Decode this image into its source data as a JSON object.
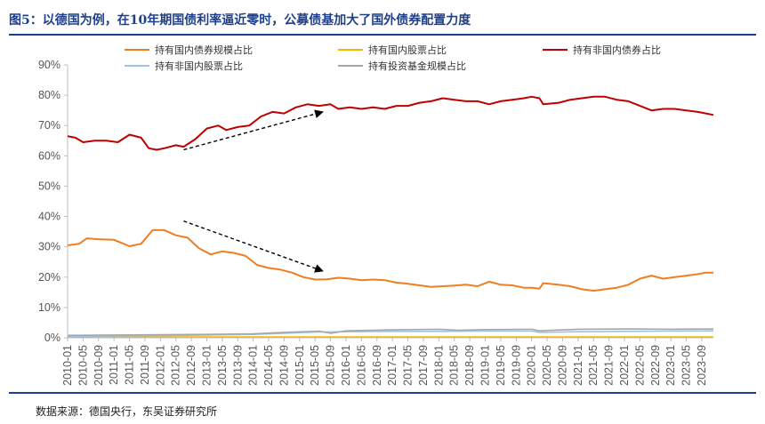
{
  "header": {
    "title": "图5：以德国为例，在10年期国债利率逼近零时，公募债基加大了国外债券配置力度"
  },
  "footer": {
    "source": "数据来源：德国央行，东吴证券研究所"
  },
  "chart_data": {
    "type": "line",
    "title": "",
    "xlabel": "",
    "ylabel": "",
    "ylim": [
      0,
      90
    ],
    "yticks": [
      "0%",
      "10%",
      "20%",
      "30%",
      "40%",
      "50%",
      "60%",
      "70%",
      "80%",
      "90%"
    ],
    "x_start": "2010-01",
    "x_end": "2023-12",
    "xticks": [
      "2010-01",
      "2010-05",
      "2010-09",
      "2011-01",
      "2011-05",
      "2011-09",
      "2012-01",
      "2012-05",
      "2012-09",
      "2013-01",
      "2013-05",
      "2013-09",
      "2014-01",
      "2014-05",
      "2014-09",
      "2015-01",
      "2015-05",
      "2015-09",
      "2016-01",
      "2016-05",
      "2016-09",
      "2017-01",
      "2017-05",
      "2017-09",
      "2018-01",
      "2018-05",
      "2018-09",
      "2019-01",
      "2019-05",
      "2019-09",
      "2020-01",
      "2020-05",
      "2020-09",
      "2021-01",
      "2021-05",
      "2021-09",
      "2022-01",
      "2022-05",
      "2022-09",
      "2023-01",
      "2023-05",
      "2023-09"
    ],
    "legend_position": "top",
    "grid": false,
    "series": [
      {
        "name": "持有国内债券规模占比",
        "color": "#f07d1f",
        "points": [
          [
            "2010-01",
            30.5
          ],
          [
            "2010-04",
            31
          ],
          [
            "2010-06",
            32.8
          ],
          [
            "2010-09",
            32.5
          ],
          [
            "2011-01",
            32.3
          ],
          [
            "2011-05",
            30.2
          ],
          [
            "2011-08",
            31
          ],
          [
            "2011-11",
            35.5
          ],
          [
            "2012-02",
            35.5
          ],
          [
            "2012-05",
            33.8
          ],
          [
            "2012-08",
            33
          ],
          [
            "2012-11",
            29.5
          ],
          [
            "2013-02",
            27.5
          ],
          [
            "2013-05",
            28.5
          ],
          [
            "2013-08",
            28
          ],
          [
            "2013-11",
            27
          ],
          [
            "2014-02",
            24
          ],
          [
            "2014-05",
            23
          ],
          [
            "2014-08",
            22.5
          ],
          [
            "2014-11",
            21.5
          ],
          [
            "2015-02",
            20
          ],
          [
            "2015-05",
            19.2
          ],
          [
            "2015-08",
            19.3
          ],
          [
            "2015-11",
            19.8
          ],
          [
            "2016-02",
            19.5
          ],
          [
            "2016-05",
            19
          ],
          [
            "2016-08",
            19.2
          ],
          [
            "2016-11",
            19
          ],
          [
            "2017-02",
            18.2
          ],
          [
            "2017-05",
            17.8
          ],
          [
            "2017-08",
            17.3
          ],
          [
            "2017-11",
            16.8
          ],
          [
            "2018-02",
            17
          ],
          [
            "2018-05",
            17.2
          ],
          [
            "2018-08",
            17.5
          ],
          [
            "2018-11",
            17
          ],
          [
            "2019-02",
            18.5
          ],
          [
            "2019-05",
            17.5
          ],
          [
            "2019-08",
            17.3
          ],
          [
            "2019-11",
            16.5
          ],
          [
            "2020-01",
            16.5
          ],
          [
            "2020-03",
            16.2
          ],
          [
            "2020-04",
            18
          ],
          [
            "2020-08",
            17.5
          ],
          [
            "2020-11",
            17
          ],
          [
            "2021-02",
            16
          ],
          [
            "2021-05",
            15.5
          ],
          [
            "2021-08",
            16
          ],
          [
            "2021-11",
            16.5
          ],
          [
            "2022-02",
            17.5
          ],
          [
            "2022-05",
            19.5
          ],
          [
            "2022-08",
            20.5
          ],
          [
            "2022-11",
            19.5
          ],
          [
            "2023-02",
            20
          ],
          [
            "2023-05",
            20.5
          ],
          [
            "2023-08",
            21
          ],
          [
            "2023-10",
            21.5
          ],
          [
            "2023-12",
            21.5
          ]
        ]
      },
      {
        "name": "持有国内股票占比",
        "color": "#f5b800",
        "points": [
          [
            "2010-01",
            0.3
          ],
          [
            "2012-01",
            0.3
          ],
          [
            "2014-01",
            0.3
          ],
          [
            "2016-01",
            0.3
          ],
          [
            "2018-01",
            0.3
          ],
          [
            "2020-01",
            0.3
          ],
          [
            "2022-01",
            0.3
          ],
          [
            "2023-12",
            0.3
          ]
        ]
      },
      {
        "name": "持有非国内债券占比",
        "color": "#c00000",
        "points": [
          [
            "2010-01",
            66.5
          ],
          [
            "2010-03",
            66
          ],
          [
            "2010-05",
            64.5
          ],
          [
            "2010-08",
            65
          ],
          [
            "2010-11",
            65
          ],
          [
            "2011-02",
            64.5
          ],
          [
            "2011-05",
            67
          ],
          [
            "2011-08",
            66
          ],
          [
            "2011-10",
            62.5
          ],
          [
            "2011-12",
            62
          ],
          [
            "2012-02",
            62.5
          ],
          [
            "2012-05",
            63.5
          ],
          [
            "2012-07",
            63
          ],
          [
            "2012-10",
            65.5
          ],
          [
            "2013-01",
            69
          ],
          [
            "2013-04",
            70
          ],
          [
            "2013-06",
            68.5
          ],
          [
            "2013-09",
            69.5
          ],
          [
            "2013-12",
            70
          ],
          [
            "2014-03",
            73
          ],
          [
            "2014-06",
            74.5
          ],
          [
            "2014-09",
            74
          ],
          [
            "2014-12",
            76
          ],
          [
            "2015-03",
            77
          ],
          [
            "2015-06",
            76.5
          ],
          [
            "2015-09",
            77
          ],
          [
            "2015-11",
            75.5
          ],
          [
            "2016-02",
            76
          ],
          [
            "2016-05",
            75.5
          ],
          [
            "2016-08",
            76
          ],
          [
            "2016-11",
            75.5
          ],
          [
            "2017-02",
            76.5
          ],
          [
            "2017-05",
            76.5
          ],
          [
            "2017-08",
            77.5
          ],
          [
            "2017-11",
            78
          ],
          [
            "2018-02",
            79
          ],
          [
            "2018-05",
            78.5
          ],
          [
            "2018-08",
            78
          ],
          [
            "2018-11",
            78
          ],
          [
            "2019-02",
            77
          ],
          [
            "2019-05",
            78
          ],
          [
            "2019-08",
            78.5
          ],
          [
            "2019-11",
            79
          ],
          [
            "2020-01",
            79.5
          ],
          [
            "2020-03",
            79
          ],
          [
            "2020-04",
            77
          ],
          [
            "2020-08",
            77.5
          ],
          [
            "2020-11",
            78.5
          ],
          [
            "2021-02",
            79
          ],
          [
            "2021-05",
            79.5
          ],
          [
            "2021-08",
            79.5
          ],
          [
            "2021-11",
            78.5
          ],
          [
            "2022-02",
            78
          ],
          [
            "2022-05",
            76.5
          ],
          [
            "2022-08",
            75
          ],
          [
            "2022-11",
            75.5
          ],
          [
            "2023-02",
            75.5
          ],
          [
            "2023-05",
            75
          ],
          [
            "2023-08",
            74.5
          ],
          [
            "2023-12",
            73.5
          ]
        ]
      },
      {
        "name": "持有非国内股票占比",
        "color": "#9dc3e6",
        "points": [
          [
            "2010-01",
            0.5
          ],
          [
            "2011-01",
            0.6
          ],
          [
            "2012-01",
            0.7
          ],
          [
            "2013-01",
            0.9
          ],
          [
            "2014-01",
            1.1
          ],
          [
            "2014-09",
            1.5
          ],
          [
            "2015-06",
            1.9
          ],
          [
            "2016-01",
            2
          ],
          [
            "2017-01",
            2.1
          ],
          [
            "2018-01",
            2.1
          ],
          [
            "2019-01",
            2.2
          ],
          [
            "2020-01",
            2.2
          ],
          [
            "2020-03",
            1.8
          ],
          [
            "2021-01",
            2
          ],
          [
            "2022-01",
            2.1
          ],
          [
            "2023-01",
            2.2
          ],
          [
            "2023-12",
            2.3
          ]
        ]
      },
      {
        "name": "持有投资基金规模占比",
        "color": "#a6a6a6",
        "points": [
          [
            "2010-01",
            0.8
          ],
          [
            "2011-01",
            0.9
          ],
          [
            "2012-01",
            1
          ],
          [
            "2013-01",
            1.1
          ],
          [
            "2014-01",
            1.3
          ],
          [
            "2014-09",
            1.8
          ],
          [
            "2015-06",
            2.2
          ],
          [
            "2015-09",
            1.5
          ],
          [
            "2016-01",
            2.3
          ],
          [
            "2017-01",
            2.6
          ],
          [
            "2018-01",
            2.8
          ],
          [
            "2018-06",
            2.5
          ],
          [
            "2019-01",
            2.7
          ],
          [
            "2020-01",
            2.8
          ],
          [
            "2020-03",
            2.3
          ],
          [
            "2021-01",
            2.8
          ],
          [
            "2022-01",
            2.9
          ],
          [
            "2023-01",
            2.8
          ],
          [
            "2023-12",
            2.9
          ]
        ]
      }
    ],
    "annotations": [
      {
        "type": "arrow",
        "style": "dashed",
        "from": [
          "2012-07",
          62
        ],
        "to": [
          "2015-07",
          74.5
        ]
      },
      {
        "type": "arrow",
        "style": "dashed",
        "from": [
          "2012-07",
          38.5
        ],
        "to": [
          "2015-07",
          22
        ]
      }
    ]
  }
}
